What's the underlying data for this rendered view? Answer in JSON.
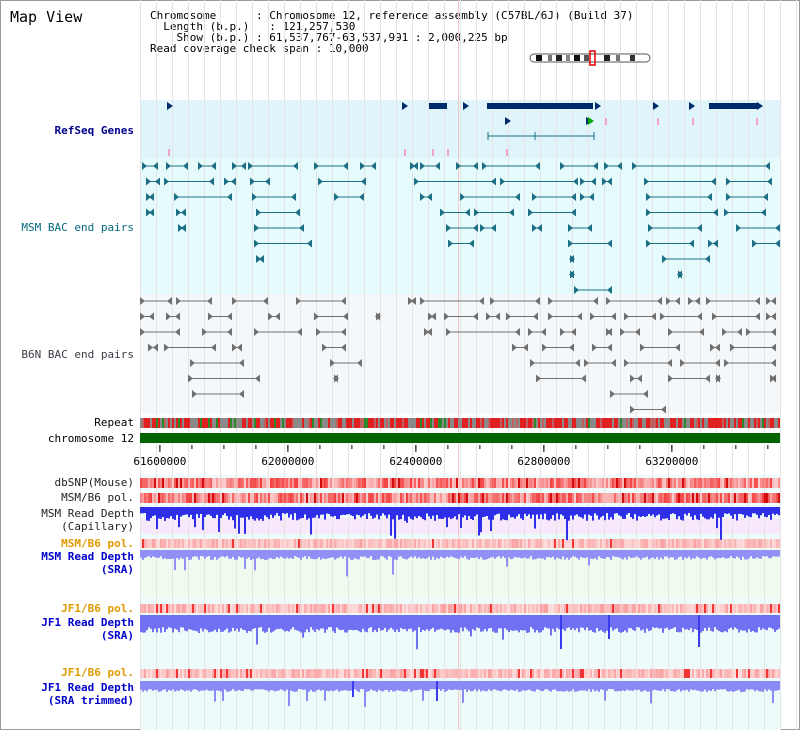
{
  "title": "Map View",
  "header": {
    "chromosome_key": "Chromosome",
    "chromosome_value": "Chromosome 12, reference assembly (C57BL/6J) (Build 37)",
    "length_key": "Length (b.p.)",
    "length_value": "121,257,530",
    "show_key": "Show (b.p.)",
    "show_value": "61,537,767-63,537,991 : 2,000,225 bp",
    "coverage_key": "Read coverage check span",
    "coverage_value": "10,000"
  },
  "tracks": {
    "refseq": "RefSeq Genes",
    "msm_bac": "MSM BAC end pairs",
    "b6n_bac": "B6N BAC end pairs",
    "repeat": "Repeat",
    "chromosome": "chromosome 12",
    "dbsnp": "dbSNP(Mouse)",
    "msm_b6_pol_1": "MSM/B6 pol.",
    "msm_rd_cap_1": "MSM Read Depth",
    "msm_rd_cap_2": "(Capillary)",
    "msm_b6_pol_2": "MSM/B6 pol.",
    "msm_rd_sra_1": "MSM Read Depth",
    "msm_rd_sra_2": "(SRA)",
    "jf1_b6_pol_1": "JF1/B6 pol.",
    "jf1_rd_sra_1": "JF1 Read Depth",
    "jf1_rd_sra_2": "(SRA)",
    "jf1_b6_pol_2": "JF1/B6 pol.",
    "jf1_rd_trim_1": "JF1 Read Depth",
    "jf1_rd_trim_2": "(SRA trimmed)"
  },
  "axis": {
    "ticks": [
      "61600000",
      "62000000",
      "62400000",
      "62800000",
      "63200000"
    ],
    "tick_positions_bp": [
      61600000,
      62000000,
      62400000,
      62800000,
      63200000
    ],
    "range_bp": [
      61537767,
      63537991
    ]
  },
  "colors": {
    "refseq_bg": "#dff4fb",
    "msm_bg": "#e6fbfb",
    "b6n_bg": "#f5f8fb",
    "gene": "#002b6b",
    "msm_feature": "#1d6f86",
    "b6n_feature": "#707070",
    "chromosome": "#006400",
    "pol_red": "#f03a3a",
    "depth_blue": "#3a3af0",
    "depth_light": "#8c8cf8"
  }
}
